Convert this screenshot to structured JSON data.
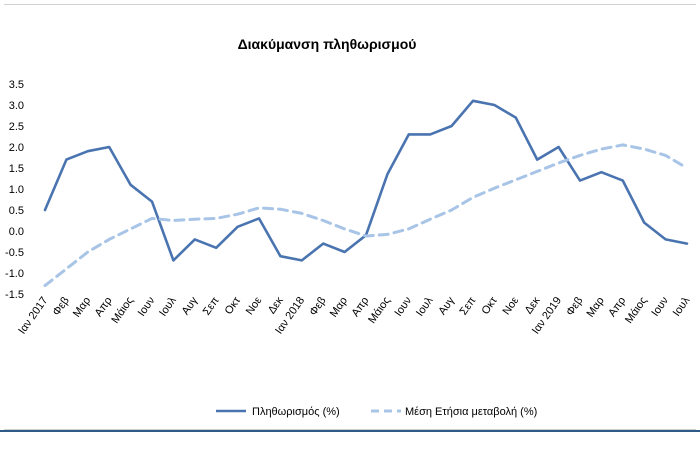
{
  "chart_data": {
    "type": "line",
    "title": "Διακύμανση  πληθωρισμού",
    "xlabel": "",
    "ylabel": "",
    "ylim": [
      -1.5,
      3.5
    ],
    "yticks": [
      "3.5",
      "3.0",
      "2.5",
      "2.0",
      "1.5",
      "1.0",
      "0.5",
      "0.0",
      "-0.5",
      "-1.0",
      "-1.5"
    ],
    "grid": false,
    "legend_position": "bottom",
    "categories": [
      "Ιαν 2017",
      "Φεβ",
      "Μαρ",
      "Απρ",
      "Μάιος",
      "Ιουν",
      "Ιουλ",
      "Αυγ",
      "Σεπ",
      "Οκτ",
      "Νοε",
      "Δεκ",
      "Ιαν 2018",
      "Φεβ",
      "Μαρ",
      "Απρ",
      "Μάιος",
      "Ιουν",
      "Ιουλ",
      "Αυγ",
      "Σεπ",
      "Οκτ",
      "Νοε",
      "Δεκ",
      "Ιαν 2019",
      "Φεβ",
      "Μαρ",
      "Απρ",
      "Μάιος",
      "Ιουν",
      "Ιουλ"
    ],
    "series": [
      {
        "name": "Πληθωρισμός (%)",
        "color": "#4a74b0",
        "style": "solid",
        "values": [
          0.5,
          1.7,
          1.9,
          2.0,
          1.1,
          0.7,
          -0.7,
          -0.2,
          -0.4,
          0.1,
          0.3,
          -0.6,
          -0.7,
          -0.3,
          -0.5,
          -0.1,
          1.35,
          2.3,
          2.3,
          2.5,
          3.1,
          3.0,
          2.7,
          1.7,
          2.0,
          1.2,
          1.4,
          1.2,
          0.2,
          -0.2,
          -0.3
        ]
      },
      {
        "name": "Μέση Ετήσια μεταβολή (%)",
        "color": "#a8c4e6",
        "style": "dashed",
        "values": [
          -1.3,
          -0.9,
          -0.5,
          -0.2,
          0.05,
          0.3,
          0.25,
          0.28,
          0.3,
          0.4,
          0.55,
          0.52,
          0.42,
          0.25,
          0.05,
          -0.12,
          -0.08,
          0.05,
          0.28,
          0.5,
          0.8,
          1.02,
          1.22,
          1.42,
          1.62,
          1.8,
          1.95,
          2.05,
          1.95,
          1.8,
          1.5
        ]
      }
    ]
  }
}
